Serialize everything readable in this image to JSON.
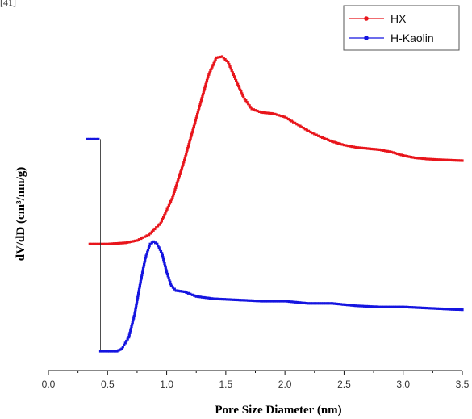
{
  "figure_ref": "[41]",
  "chart_data": {
    "type": "scatter",
    "title": "",
    "xlabel": "Pore Size Diameter (nm)",
    "ylabel": "dV/dD (cm³/nm/g)",
    "xlim": [
      0.0,
      3.5
    ],
    "x_ticks": [
      "0.0",
      "0.5",
      "1.0",
      "1.5",
      "2.0",
      "2.5",
      "3.0",
      "3.5"
    ],
    "y_ticks_shown": false,
    "legend_position": "top-right",
    "series": [
      {
        "name": "HX",
        "color": "#e8151b",
        "points": [
          [
            0.35,
            0.1
          ],
          [
            0.5,
            0.1
          ],
          [
            0.65,
            0.105
          ],
          [
            0.75,
            0.115
          ],
          [
            0.85,
            0.14
          ],
          [
            0.95,
            0.19
          ],
          [
            1.05,
            0.3
          ],
          [
            1.15,
            0.46
          ],
          [
            1.25,
            0.64
          ],
          [
            1.35,
            0.82
          ],
          [
            1.42,
            0.9
          ],
          [
            1.47,
            0.905
          ],
          [
            1.52,
            0.88
          ],
          [
            1.58,
            0.81
          ],
          [
            1.65,
            0.73
          ],
          [
            1.72,
            0.68
          ],
          [
            1.8,
            0.665
          ],
          [
            1.9,
            0.66
          ],
          [
            2.0,
            0.645
          ],
          [
            2.1,
            0.615
          ],
          [
            2.2,
            0.585
          ],
          [
            2.3,
            0.56
          ],
          [
            2.4,
            0.54
          ],
          [
            2.5,
            0.525
          ],
          [
            2.6,
            0.515
          ],
          [
            2.7,
            0.51
          ],
          [
            2.8,
            0.505
          ],
          [
            2.9,
            0.495
          ],
          [
            3.0,
            0.48
          ],
          [
            3.1,
            0.47
          ],
          [
            3.2,
            0.465
          ],
          [
            3.3,
            0.462
          ],
          [
            3.4,
            0.46
          ],
          [
            3.5,
            0.458
          ]
        ]
      },
      {
        "name": "H-Kaolin",
        "color": "#1515e0",
        "points": [
          [
            0.33,
            0.55
          ],
          [
            0.44,
            0.55
          ],
          [
            0.44,
            -0.36
          ],
          [
            0.5,
            -0.36
          ],
          [
            0.58,
            -0.36
          ],
          [
            0.62,
            -0.35
          ],
          [
            0.68,
            -0.3
          ],
          [
            0.73,
            -0.2
          ],
          [
            0.78,
            -0.06
          ],
          [
            0.82,
            0.04
          ],
          [
            0.86,
            0.1
          ],
          [
            0.89,
            0.11
          ],
          [
            0.92,
            0.1
          ],
          [
            0.96,
            0.06
          ],
          [
            1.0,
            -0.02
          ],
          [
            1.04,
            -0.08
          ],
          [
            1.08,
            -0.1
          ],
          [
            1.15,
            -0.105
          ],
          [
            1.25,
            -0.125
          ],
          [
            1.4,
            -0.135
          ],
          [
            1.6,
            -0.14
          ],
          [
            1.8,
            -0.145
          ],
          [
            2.0,
            -0.145
          ],
          [
            2.2,
            -0.155
          ],
          [
            2.4,
            -0.155
          ],
          [
            2.6,
            -0.165
          ],
          [
            2.8,
            -0.17
          ],
          [
            3.0,
            -0.17
          ],
          [
            3.2,
            -0.175
          ],
          [
            3.4,
            -0.18
          ],
          [
            3.5,
            -0.182
          ]
        ]
      }
    ]
  }
}
